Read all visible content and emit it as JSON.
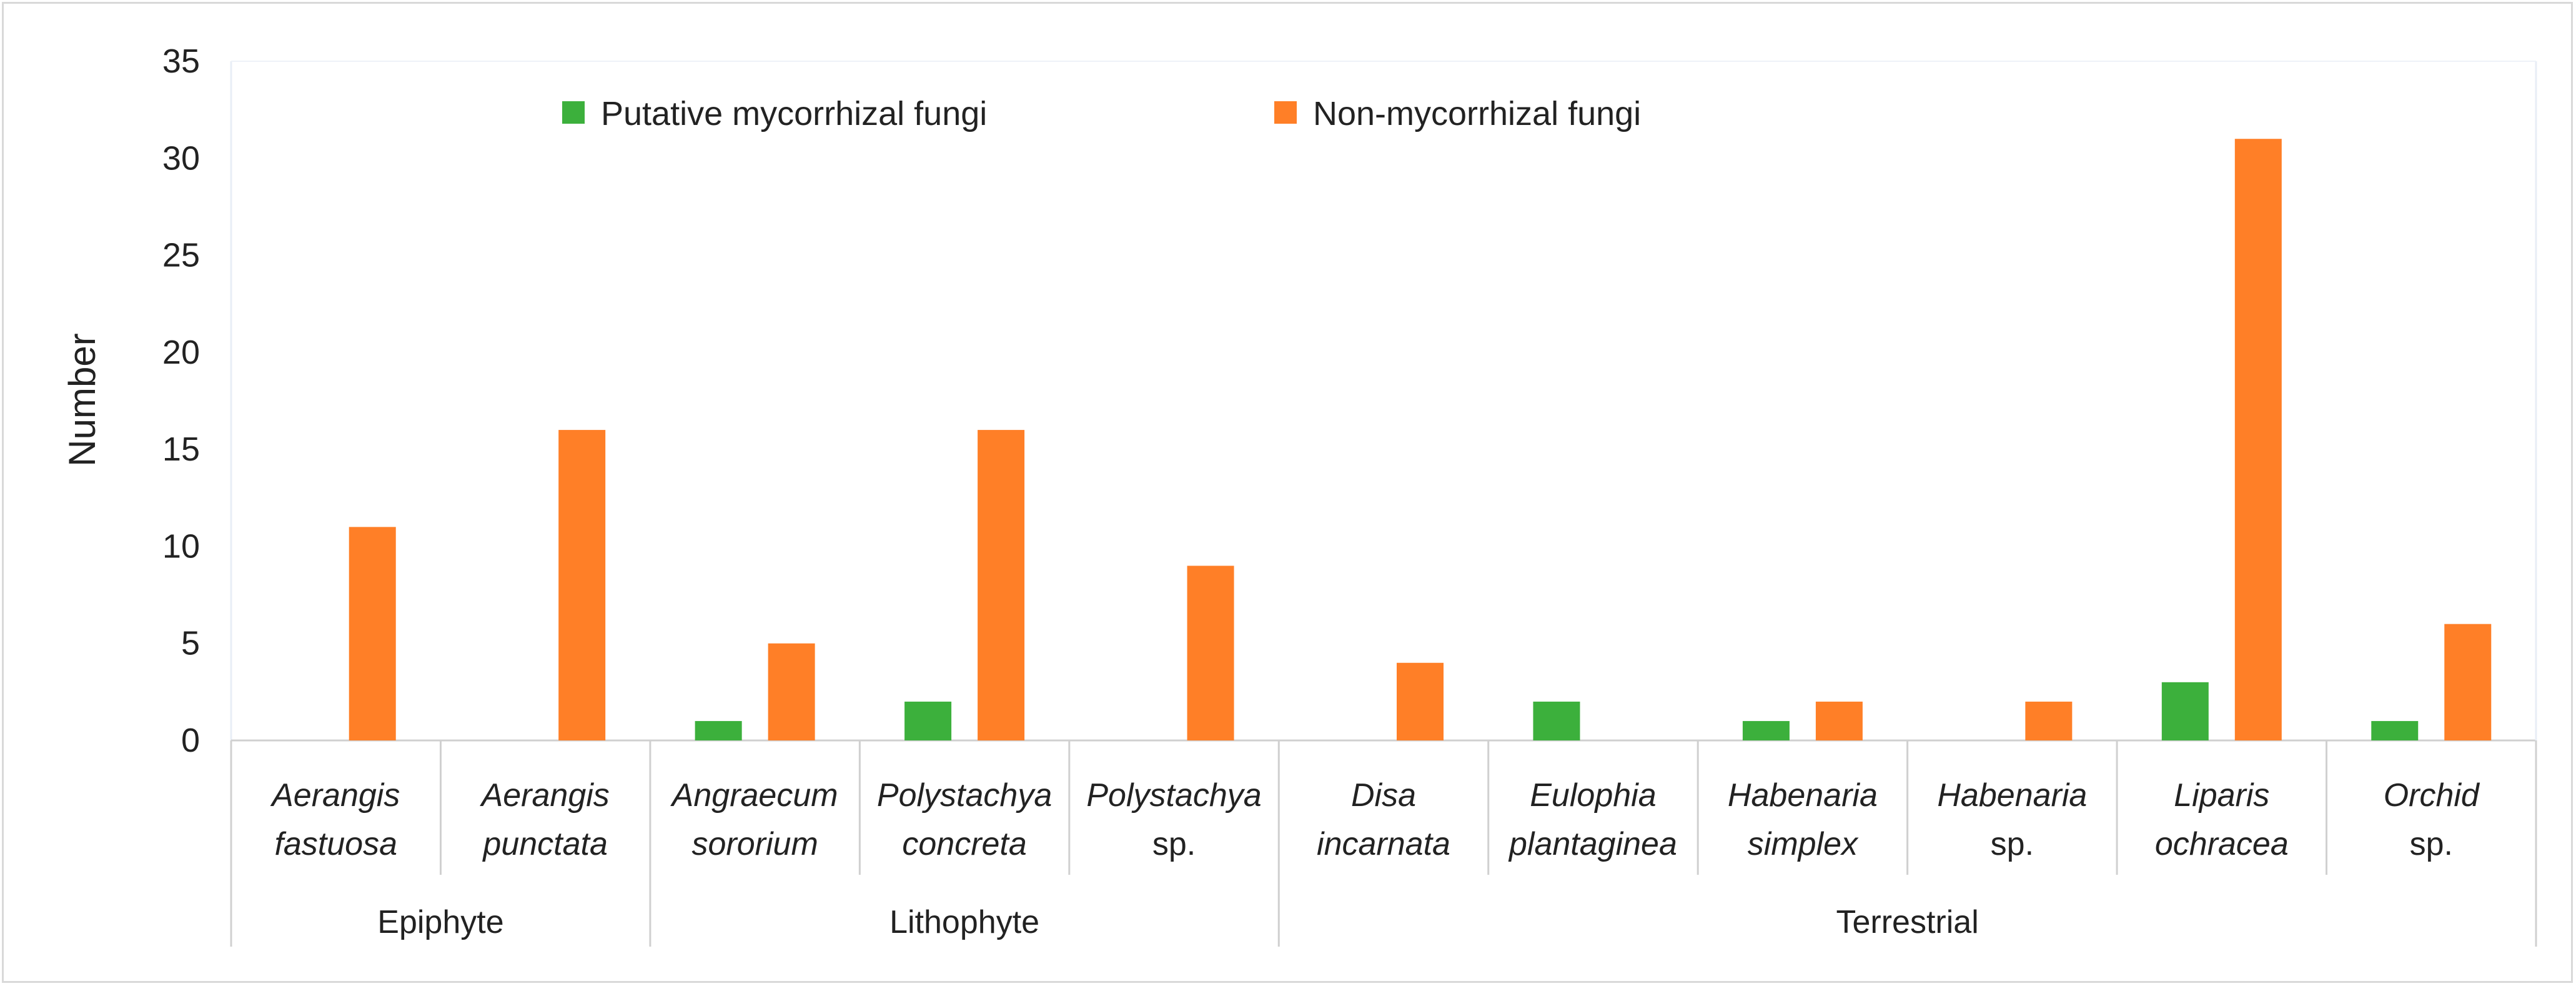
{
  "chart_data": {
    "type": "bar",
    "ylabel": "Number",
    "ylim": [
      0,
      35
    ],
    "yticks": [
      0,
      5,
      10,
      15,
      20,
      25,
      30,
      35
    ],
    "grid": false,
    "legend_position": "top-center",
    "categories": [
      {
        "line1": "Aerangis",
        "line2": "fastuosa"
      },
      {
        "line1": "Aerangis",
        "line2": "punctata"
      },
      {
        "line1": "Angraecum",
        "line2": "sororium"
      },
      {
        "line1": "Polystachya",
        "line2": "concreta"
      },
      {
        "line1": "Polystachya",
        "line2": "sp."
      },
      {
        "line1": "Disa",
        "line2": "incarnata"
      },
      {
        "line1": "Eulophia",
        "line2": "plantaginea"
      },
      {
        "line1": "Habenaria",
        "line2": "simplex"
      },
      {
        "line1": "Habenaria",
        "line2": "sp."
      },
      {
        "line1": "Liparis",
        "line2": "ochracea"
      },
      {
        "line1": "Orchid",
        "line2": "sp."
      }
    ],
    "groups": [
      {
        "name": "Epiphyte",
        "count": 2
      },
      {
        "name": "Lithophyte",
        "count": 3
      },
      {
        "name": "Terrestrial",
        "count": 6
      }
    ],
    "series": [
      {
        "name": "Putative mycorrhizal fungi",
        "color": "#3cb03c",
        "values": [
          0,
          0,
          1,
          2,
          0,
          0,
          2,
          1,
          0,
          3,
          1
        ]
      },
      {
        "name": "Non-mycorrhizal fungi",
        "color": "#ff7f27",
        "values": [
          11,
          16,
          5,
          16,
          9,
          4,
          0,
          2,
          2,
          31,
          6
        ]
      }
    ]
  }
}
